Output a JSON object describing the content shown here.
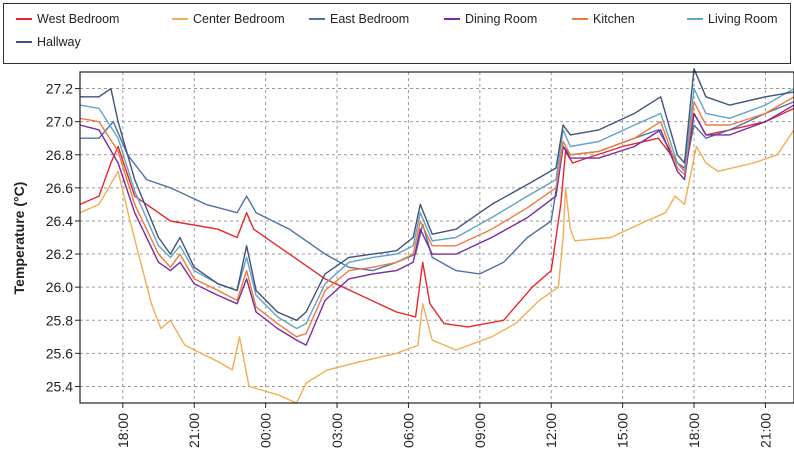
{
  "chart_data": {
    "type": "line",
    "title": "",
    "ylabel": "Temperature (°C)",
    "xlabel": "",
    "ylim": [
      25.3,
      27.3
    ],
    "xlim": [
      16.2,
      46.2
    ],
    "grid": true,
    "legend_position": "top",
    "y_ticks": [
      25.4,
      25.6,
      25.8,
      26.0,
      26.2,
      26.4,
      26.6,
      26.8,
      27.0,
      27.2
    ],
    "y_tick_labels": [
      "25.4",
      "25.6",
      "25.8",
      "26.0",
      "26.2",
      "26.4",
      "26.6",
      "26.8",
      "27.0",
      "27.2"
    ],
    "x_ticks": [
      18,
      21,
      24,
      27,
      30,
      33,
      36,
      39,
      42,
      45
    ],
    "x_tick_labels": [
      "18:00",
      "21:00",
      "00:00",
      "03:00",
      "06:00",
      "09:00",
      "12:00",
      "15:00",
      "18:00",
      "21:00"
    ],
    "series": [
      {
        "name": "West Bedroom",
        "color": "#e8272b",
        "points": [
          [
            16.2,
            26.5
          ],
          [
            17,
            26.55
          ],
          [
            17.5,
            26.75
          ],
          [
            17.8,
            26.85
          ],
          [
            18.5,
            26.55
          ],
          [
            20,
            26.4
          ],
          [
            22,
            26.35
          ],
          [
            22.8,
            26.3
          ],
          [
            23.2,
            26.45
          ],
          [
            23.5,
            26.35
          ],
          [
            25,
            26.2
          ],
          [
            26.5,
            26.05
          ],
          [
            28,
            25.95
          ],
          [
            29.5,
            25.85
          ],
          [
            30.3,
            25.82
          ],
          [
            30.6,
            26.15
          ],
          [
            30.9,
            25.9
          ],
          [
            31.5,
            25.78
          ],
          [
            32.5,
            25.76
          ],
          [
            34,
            25.8
          ],
          [
            35.2,
            26.0
          ],
          [
            36,
            26.1
          ],
          [
            36.4,
            26.5
          ],
          [
            36.6,
            26.82
          ],
          [
            36.9,
            26.75
          ],
          [
            37.5,
            26.78
          ],
          [
            39,
            26.85
          ],
          [
            40.5,
            26.9
          ],
          [
            41.3,
            26.75
          ],
          [
            41.6,
            26.72
          ],
          [
            42,
            27.05
          ],
          [
            42.5,
            26.92
          ],
          [
            43.5,
            26.95
          ],
          [
            45,
            27.0
          ],
          [
            46.2,
            27.08
          ]
        ]
      },
      {
        "name": "Center Bedroom",
        "color": "#f2ad55",
        "points": [
          [
            16.2,
            26.45
          ],
          [
            17,
            26.5
          ],
          [
            17.8,
            26.7
          ],
          [
            18.3,
            26.4
          ],
          [
            19.2,
            25.9
          ],
          [
            19.6,
            25.75
          ],
          [
            20,
            25.8
          ],
          [
            20.6,
            25.65
          ],
          [
            22,
            25.55
          ],
          [
            22.6,
            25.5
          ],
          [
            22.9,
            25.7
          ],
          [
            23.3,
            25.4
          ],
          [
            24.5,
            25.35
          ],
          [
            25.3,
            25.3
          ],
          [
            25.7,
            25.42
          ],
          [
            26.6,
            25.5
          ],
          [
            28,
            25.55
          ],
          [
            29.5,
            25.6
          ],
          [
            30.4,
            25.65
          ],
          [
            30.6,
            25.9
          ],
          [
            31,
            25.68
          ],
          [
            32,
            25.62
          ],
          [
            33.5,
            25.7
          ],
          [
            34.5,
            25.78
          ],
          [
            35.5,
            25.92
          ],
          [
            36.3,
            26.0
          ],
          [
            36.5,
            26.3
          ],
          [
            36.6,
            26.6
          ],
          [
            36.8,
            26.35
          ],
          [
            37,
            26.28
          ],
          [
            38.5,
            26.3
          ],
          [
            40,
            26.4
          ],
          [
            40.8,
            26.45
          ],
          [
            41.2,
            26.55
          ],
          [
            41.6,
            26.5
          ],
          [
            42.1,
            26.85
          ],
          [
            42.5,
            26.75
          ],
          [
            43,
            26.7
          ],
          [
            44.5,
            26.75
          ],
          [
            45.5,
            26.8
          ],
          [
            46.2,
            26.95
          ]
        ]
      },
      {
        "name": "East Bedroom",
        "color": "#4d72a6",
        "points": [
          [
            16.2,
            26.9
          ],
          [
            17,
            26.9
          ],
          [
            17.6,
            27.0
          ],
          [
            18.2,
            26.8
          ],
          [
            19,
            26.65
          ],
          [
            20,
            26.6
          ],
          [
            21.5,
            26.5
          ],
          [
            22.8,
            26.45
          ],
          [
            23.2,
            26.55
          ],
          [
            23.6,
            26.45
          ],
          [
            25,
            26.35
          ],
          [
            26.5,
            26.2
          ],
          [
            27.5,
            26.12
          ],
          [
            28.5,
            26.1
          ],
          [
            29.5,
            26.15
          ],
          [
            30.3,
            26.2
          ],
          [
            30.6,
            26.38
          ],
          [
            31,
            26.18
          ],
          [
            32,
            26.1
          ],
          [
            33,
            26.08
          ],
          [
            34,
            26.15
          ],
          [
            35,
            26.3
          ],
          [
            36,
            26.4
          ],
          [
            36.5,
            26.85
          ],
          [
            36.8,
            26.8
          ],
          [
            38,
            26.82
          ],
          [
            39.5,
            26.9
          ],
          [
            40.5,
            26.95
          ],
          [
            41.3,
            26.75
          ],
          [
            41.6,
            26.7
          ],
          [
            42,
            26.98
          ],
          [
            42.5,
            26.9
          ],
          [
            43.5,
            26.95
          ],
          [
            45,
            27.05
          ],
          [
            46.2,
            27.12
          ]
        ]
      },
      {
        "name": "Dining Room",
        "color": "#7c2b9f",
        "points": [
          [
            16.2,
            26.98
          ],
          [
            17,
            26.95
          ],
          [
            17.8,
            26.75
          ],
          [
            18.5,
            26.45
          ],
          [
            19.5,
            26.15
          ],
          [
            20,
            26.1
          ],
          [
            20.4,
            26.15
          ],
          [
            21,
            26.02
          ],
          [
            22,
            25.95
          ],
          [
            22.8,
            25.9
          ],
          [
            23.2,
            26.05
          ],
          [
            23.6,
            25.85
          ],
          [
            24.5,
            25.75
          ],
          [
            25.3,
            25.68
          ],
          [
            25.7,
            25.65
          ],
          [
            26.5,
            25.92
          ],
          [
            27.5,
            26.05
          ],
          [
            28.5,
            26.08
          ],
          [
            29.5,
            26.1
          ],
          [
            30.2,
            26.15
          ],
          [
            30.5,
            26.35
          ],
          [
            31,
            26.2
          ],
          [
            32,
            26.2
          ],
          [
            33.5,
            26.3
          ],
          [
            35,
            26.42
          ],
          [
            36.2,
            26.55
          ],
          [
            36.5,
            26.85
          ],
          [
            36.8,
            26.78
          ],
          [
            38,
            26.78
          ],
          [
            39.5,
            26.85
          ],
          [
            40.6,
            26.95
          ],
          [
            41.3,
            26.7
          ],
          [
            41.6,
            26.65
          ],
          [
            42,
            27.05
          ],
          [
            42.5,
            26.92
          ],
          [
            43.5,
            26.92
          ],
          [
            45,
            27.0
          ],
          [
            46.2,
            27.1
          ]
        ]
      },
      {
        "name": "Kitchen",
        "color": "#f07a3d",
        "points": [
          [
            16.2,
            27.02
          ],
          [
            17,
            27.0
          ],
          [
            17.8,
            26.82
          ],
          [
            18.5,
            26.5
          ],
          [
            19.5,
            26.2
          ],
          [
            20,
            26.12
          ],
          [
            20.4,
            26.2
          ],
          [
            21,
            26.05
          ],
          [
            22,
            25.98
          ],
          [
            22.8,
            25.92
          ],
          [
            23.2,
            26.1
          ],
          [
            23.6,
            25.88
          ],
          [
            24.5,
            25.78
          ],
          [
            25.3,
            25.7
          ],
          [
            25.7,
            25.72
          ],
          [
            26.5,
            25.98
          ],
          [
            27.5,
            26.1
          ],
          [
            28.5,
            26.12
          ],
          [
            29.5,
            26.15
          ],
          [
            30.2,
            26.2
          ],
          [
            30.5,
            26.4
          ],
          [
            31,
            26.25
          ],
          [
            32,
            26.25
          ],
          [
            33.5,
            26.35
          ],
          [
            35,
            26.48
          ],
          [
            36.2,
            26.6
          ],
          [
            36.5,
            26.88
          ],
          [
            36.8,
            26.8
          ],
          [
            38,
            26.82
          ],
          [
            39.5,
            26.9
          ],
          [
            40.6,
            27.0
          ],
          [
            41.3,
            26.72
          ],
          [
            41.6,
            26.68
          ],
          [
            42,
            27.12
          ],
          [
            42.5,
            26.98
          ],
          [
            43.5,
            26.98
          ],
          [
            45,
            27.05
          ],
          [
            46.2,
            27.15
          ]
        ]
      },
      {
        "name": "Living Room",
        "color": "#62a4c8",
        "points": [
          [
            16.2,
            27.1
          ],
          [
            17,
            27.08
          ],
          [
            17.8,
            26.9
          ],
          [
            18.5,
            26.58
          ],
          [
            19.5,
            26.25
          ],
          [
            20,
            26.18
          ],
          [
            20.4,
            26.25
          ],
          [
            21,
            26.1
          ],
          [
            22,
            26.02
          ],
          [
            22.8,
            25.98
          ],
          [
            23.2,
            26.18
          ],
          [
            23.6,
            25.95
          ],
          [
            24.5,
            25.82
          ],
          [
            25.3,
            25.75
          ],
          [
            25.7,
            25.78
          ],
          [
            26.5,
            26.02
          ],
          [
            27.5,
            26.15
          ],
          [
            28.5,
            26.18
          ],
          [
            29.5,
            26.2
          ],
          [
            30.2,
            26.25
          ],
          [
            30.5,
            26.45
          ],
          [
            31,
            26.28
          ],
          [
            32,
            26.3
          ],
          [
            33.5,
            26.42
          ],
          [
            35,
            26.55
          ],
          [
            36.2,
            26.65
          ],
          [
            36.5,
            26.95
          ],
          [
            36.8,
            26.85
          ],
          [
            38,
            26.88
          ],
          [
            39.5,
            26.98
          ],
          [
            40.6,
            27.05
          ],
          [
            41.3,
            26.75
          ],
          [
            41.6,
            26.7
          ],
          [
            42,
            27.2
          ],
          [
            42.5,
            27.05
          ],
          [
            43.5,
            27.02
          ],
          [
            45,
            27.1
          ],
          [
            46.2,
            27.2
          ]
        ]
      },
      {
        "name": "Hallway",
        "color": "#41527a",
        "points": [
          [
            16.2,
            27.15
          ],
          [
            17,
            27.15
          ],
          [
            17.5,
            27.2
          ],
          [
            17.8,
            27.0
          ],
          [
            18.5,
            26.65
          ],
          [
            19.5,
            26.3
          ],
          [
            20,
            26.2
          ],
          [
            20.4,
            26.3
          ],
          [
            21,
            26.12
          ],
          [
            22,
            26.02
          ],
          [
            22.8,
            25.98
          ],
          [
            23.2,
            26.25
          ],
          [
            23.6,
            25.98
          ],
          [
            24.5,
            25.85
          ],
          [
            25.3,
            25.8
          ],
          [
            25.7,
            25.85
          ],
          [
            26.5,
            26.08
          ],
          [
            27.5,
            26.18
          ],
          [
            28.5,
            26.2
          ],
          [
            29.5,
            26.22
          ],
          [
            30.2,
            26.3
          ],
          [
            30.5,
            26.5
          ],
          [
            31,
            26.32
          ],
          [
            32,
            26.35
          ],
          [
            33.5,
            26.5
          ],
          [
            35,
            26.62
          ],
          [
            36.2,
            26.72
          ],
          [
            36.5,
            26.98
          ],
          [
            36.8,
            26.92
          ],
          [
            38,
            26.95
          ],
          [
            39.5,
            27.05
          ],
          [
            40.6,
            27.15
          ],
          [
            41.3,
            26.8
          ],
          [
            41.6,
            26.75
          ],
          [
            42,
            27.32
          ],
          [
            42.5,
            27.15
          ],
          [
            43.5,
            27.1
          ],
          [
            45,
            27.15
          ],
          [
            46.2,
            27.18
          ]
        ]
      }
    ]
  }
}
